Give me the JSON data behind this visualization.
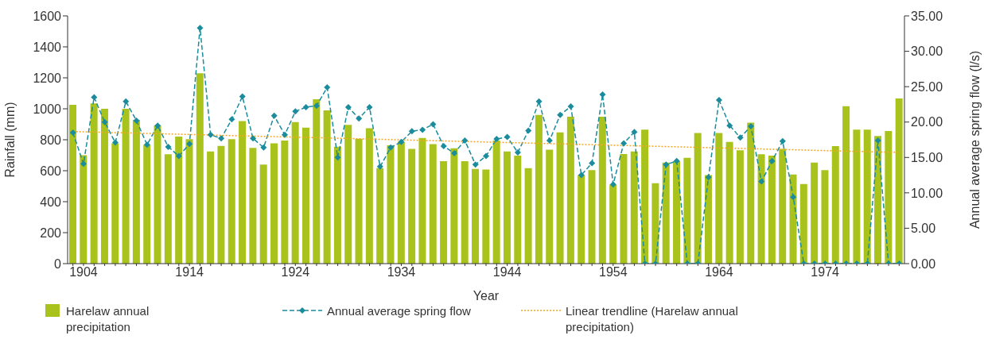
{
  "chart_data": {
    "type": "bar",
    "xlabel": "Year",
    "ylabel": "Rainfall (mm)",
    "y2label": "Annual average spring flow (l/s)",
    "categories": [
      null,
      "1904",
      null,
      null,
      null,
      null,
      null,
      null,
      null,
      null,
      null,
      "1914",
      null,
      null,
      null,
      null,
      null,
      null,
      null,
      null,
      null,
      "1924",
      null,
      null,
      null,
      null,
      null,
      null,
      null,
      null,
      null,
      "1934",
      null,
      null,
      null,
      null,
      null,
      null,
      null,
      null,
      null,
      "1944",
      null,
      null,
      null,
      null,
      null,
      null,
      null,
      null,
      null,
      "1954",
      null,
      null,
      null,
      null,
      null,
      null,
      null,
      null,
      null,
      "1964",
      null,
      null,
      null,
      null,
      null,
      null,
      null,
      null,
      null,
      "1974",
      null,
      null,
      null,
      null,
      null,
      null,
      null
    ],
    "ylim": [
      0,
      1600
    ],
    "yticks": [
      0,
      200,
      400,
      600,
      800,
      1000,
      1200,
      1400,
      1600
    ],
    "y2lim": [
      0,
      35
    ],
    "y2ticks": [
      {
        "value": 0,
        "label": "0.00"
      },
      {
        "value": 5,
        "label": "5.00"
      },
      {
        "value": 10,
        "label": "10.00"
      },
      {
        "value": 15,
        "label": "15.00"
      },
      {
        "value": 20,
        "label": "20.00"
      },
      {
        "value": 25,
        "label": "25.00"
      },
      {
        "value": 30,
        "label": "30.00"
      },
      {
        "value": 35,
        "label": "35.00"
      }
    ],
    "legend": "bottom",
    "grid": false,
    "series": [
      {
        "name": "Harelaw annual precipitation",
        "color": "#a9c31c",
        "values": [
          1026,
          700,
          1035,
          1000,
          777,
          1000,
          928,
          768,
          892,
          706,
          821,
          804,
          1230,
          724,
          760,
          804,
          920,
          747,
          640,
          777,
          795,
          914,
          878,
          1061,
          990,
          755,
          896,
          807,
          875,
          617,
          764,
          786,
          741,
          812,
          772,
          661,
          745,
          661,
          612,
          608,
          795,
          724,
          697,
          617,
          960,
          736,
          848,
          949,
          572,
          604,
          949,
          510,
          708,
          724,
          866,
          519,
          652,
          661,
          683,
          844,
          572,
          844,
          786,
          732,
          910,
          706,
          697,
          741,
          576,
          514,
          652,
          604,
          759,
          1017,
          866,
          866,
          825,
          857,
          1067
        ]
      },
      {
        "type": "line",
        "name": "Annual average spring flow",
        "color": "#1a8c9c",
        "axis": "y2",
        "marker": "diamond",
        "line_style": "dashed",
        "values": [
          18.5,
          14.1,
          23.5,
          20.0,
          17.1,
          22.9,
          20.2,
          16.8,
          19.5,
          16.5,
          15.2,
          16.9,
          33.3,
          18.2,
          17.7,
          20.4,
          23.6,
          17.7,
          16.4,
          20.9,
          18.2,
          21.5,
          22.1,
          22.3,
          24.9,
          15.0,
          22.1,
          20.5,
          22.1,
          13.7,
          16.4,
          17.2,
          18.7,
          18.9,
          19.7,
          16.6,
          15.6,
          17.4,
          14.0,
          15.2,
          17.6,
          17.9,
          15.7,
          18.8,
          22.9,
          17.4,
          21.0,
          22.2,
          12.5,
          14.2,
          23.9,
          11.2,
          17.0,
          18.6,
          0,
          0,
          14.0,
          14.5,
          0,
          0,
          12.2,
          23.1,
          19.5,
          17.8,
          19.4,
          11.6,
          14.5,
          17.3,
          9.4,
          0,
          0,
          0,
          0,
          0,
          0,
          0,
          17.4,
          0,
          0
        ]
      },
      {
        "type": "line",
        "name": "Linear trendline (Harelaw annual precipitation)",
        "color": "#f5a623",
        "marker": "none",
        "line_style": "dotted",
        "values": [
          853,
          null,
          null,
          null,
          null,
          null,
          null,
          null,
          null,
          null,
          null,
          null,
          null,
          null,
          null,
          null,
          null,
          null,
          null,
          null,
          null,
          null,
          null,
          null,
          null,
          null,
          null,
          null,
          null,
          null,
          null,
          null,
          null,
          null,
          null,
          null,
          null,
          null,
          null,
          null,
          null,
          null,
          null,
          null,
          null,
          null,
          null,
          null,
          null,
          null,
          null,
          null,
          null,
          null,
          null,
          null,
          null,
          null,
          null,
          null,
          null,
          null,
          null,
          null,
          null,
          null,
          null,
          null,
          null,
          null,
          null,
          null,
          null,
          null,
          null,
          null,
          null,
          null,
          718
        ]
      }
    ]
  }
}
